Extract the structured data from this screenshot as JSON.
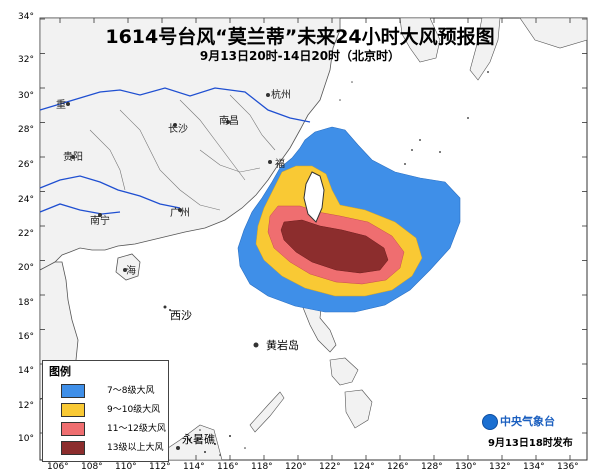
{
  "title": "1614号台风“莫兰蒂”未来24小时大风预报图",
  "subtitle": "9月13日20时-14日20时（北京时）",
  "legend": {
    "title": "图例",
    "items": [
      {
        "label": "7～8级大风",
        "color": "#3f8fe8"
      },
      {
        "label": "9～10级大风",
        "color": "#f9c934"
      },
      {
        "label": "11～12级大风",
        "color": "#ef6e70"
      },
      {
        "label": "13级以上大风",
        "color": "#8c2d2d"
      }
    ]
  },
  "issuer": {
    "name": "中央气象台",
    "time": "9月13日18时发布"
  },
  "axes": {
    "lat_labels": [
      "34°",
      "32°",
      "30°",
      "28°",
      "26°",
      "24°",
      "22°",
      "20°",
      "18°",
      "16°",
      "14°",
      "12°",
      "10°"
    ],
    "lon_labels": [
      "106°",
      "108°",
      "110°",
      "112°",
      "114°",
      "116°",
      "118°",
      "120°",
      "122°",
      "124°",
      "126°",
      "128°",
      "130°",
      "132°",
      "134°",
      "136°"
    ]
  },
  "places": [
    {
      "name": "杭州"
    },
    {
      "name": "南昌"
    },
    {
      "name": "长沙"
    },
    {
      "name": "贵阳"
    },
    {
      "name": "福"
    },
    {
      "name": "南宁"
    },
    {
      "name": "广州"
    },
    {
      "name": "海"
    },
    {
      "name": "重"
    },
    {
      "name": "西沙"
    },
    {
      "name": "黄岩岛"
    },
    {
      "name": "永暑礁"
    }
  ]
}
